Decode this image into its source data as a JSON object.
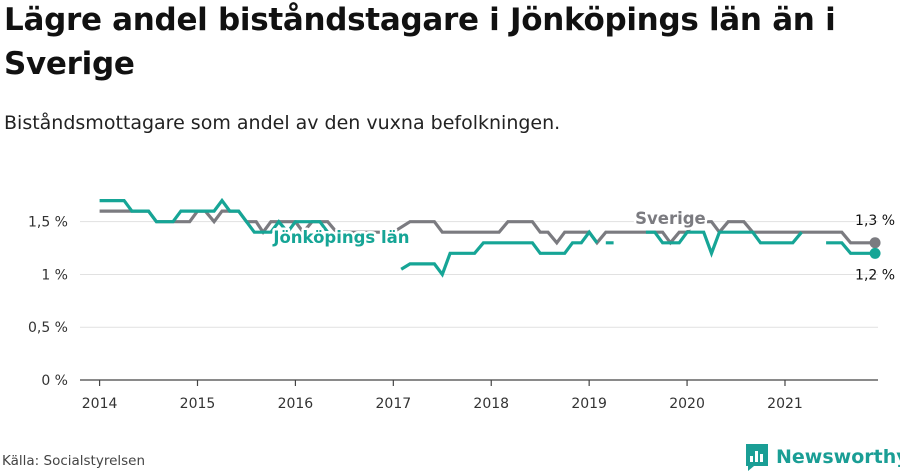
{
  "title": "Lägre andel biståndstagare i Jönköpings län än i Sverige",
  "subtitle": "Biståndsmottagare som andel av den vuxna befolkningen.",
  "source": "Källa: Socialstyrelsen",
  "brand": "Newsworthy",
  "colors": {
    "sverige": "#7b7b80",
    "jonkoping": "#16a596",
    "grid": "#e1e1e1",
    "axis": "#444444",
    "brand": "#1a9e95"
  },
  "chart_data": {
    "type": "line",
    "title": "Lägre andel biståndstagare i Jönköpings län än i Sverige",
    "ylabel": "",
    "xlabel": "",
    "ylim": [
      0,
      1.8
    ],
    "xlim": [
      2013.8,
      2021.95
    ],
    "grid": true,
    "y_ticks": [
      {
        "value": 0,
        "label": "0 %"
      },
      {
        "value": 0.5,
        "label": "0,5 %"
      },
      {
        "value": 1.0,
        "label": "1 %"
      },
      {
        "value": 1.5,
        "label": "1,5 %"
      }
    ],
    "x_ticks": [
      {
        "value": 2014,
        "label": "2014"
      },
      {
        "value": 2015,
        "label": "2015"
      },
      {
        "value": 2016,
        "label": "2016"
      },
      {
        "value": 2017,
        "label": "2017"
      },
      {
        "value": 2018,
        "label": "2018"
      },
      {
        "value": 2019,
        "label": "2019"
      },
      {
        "value": 2020,
        "label": "2020"
      },
      {
        "value": 2021,
        "label": "2021"
      }
    ],
    "series": [
      {
        "name": "Sverige",
        "end_label": "1,3 %",
        "points": [
          [
            2014.0,
            1.6
          ],
          [
            2014.25,
            1.6
          ],
          [
            2014.33,
            1.6
          ],
          [
            2014.5,
            1.6
          ],
          [
            2014.58,
            1.5
          ],
          [
            2014.92,
            1.5
          ],
          [
            2015.0,
            1.6
          ],
          [
            2015.08,
            1.6
          ],
          [
            2015.17,
            1.5
          ],
          [
            2015.25,
            1.6
          ],
          [
            2015.42,
            1.6
          ],
          [
            2015.5,
            1.5
          ],
          [
            2015.6,
            1.5
          ],
          [
            2015.67,
            1.4
          ],
          [
            2015.75,
            1.5
          ],
          [
            2016.0,
            1.5
          ],
          [
            2016.08,
            1.4
          ],
          [
            2016.17,
            1.5
          ],
          [
            2016.33,
            1.5
          ],
          [
            2016.42,
            1.4
          ],
          [
            2017.0,
            1.4
          ],
          [
            2017.17,
            1.5
          ],
          [
            2017.42,
            1.5
          ],
          [
            2017.5,
            1.4
          ],
          [
            2018.08,
            1.4
          ],
          [
            2018.17,
            1.5
          ],
          [
            2018.42,
            1.5
          ],
          [
            2018.5,
            1.4
          ],
          [
            2018.58,
            1.4
          ],
          [
            2018.67,
            1.3
          ],
          [
            2018.75,
            1.4
          ],
          [
            2019.0,
            1.4
          ],
          [
            2019.08,
            1.3
          ],
          [
            2019.17,
            1.4
          ],
          [
            2019.75,
            1.4
          ],
          [
            2019.83,
            1.3
          ],
          [
            2019.92,
            1.4
          ],
          [
            2020.0,
            1.4
          ],
          [
            2020.08,
            1.5
          ],
          [
            2020.25,
            1.5
          ],
          [
            2020.33,
            1.4
          ],
          [
            2020.42,
            1.5
          ],
          [
            2020.58,
            1.5
          ],
          [
            2020.67,
            1.4
          ],
          [
            2021.58,
            1.4
          ],
          [
            2021.67,
            1.3
          ],
          [
            2021.83,
            1.3
          ],
          [
            2021.92,
            1.3
          ]
        ],
        "labels": [
          {
            "value": 2019.83,
            "y": 1.48,
            "text": "Sverige"
          }
        ]
      },
      {
        "name": "Jönköpings län",
        "end_label": "1,2 %",
        "points": [
          [
            2014.0,
            1.7
          ],
          [
            2014.25,
            1.7
          ],
          [
            2014.33,
            1.6
          ],
          [
            2014.5,
            1.6
          ],
          [
            2014.58,
            1.5
          ],
          [
            2014.75,
            1.5
          ],
          [
            2014.83,
            1.6
          ],
          [
            2015.0,
            1.6
          ],
          [
            2015.17,
            1.6
          ],
          [
            2015.25,
            1.7
          ],
          [
            2015.33,
            1.6
          ],
          [
            2015.42,
            1.6
          ],
          [
            2015.5,
            1.5
          ],
          [
            2015.58,
            1.4
          ],
          [
            2015.75,
            1.4
          ],
          [
            2015.83,
            1.5
          ],
          [
            2015.92,
            1.4
          ],
          [
            2016.0,
            1.5
          ],
          [
            2016.17,
            1.5
          ],
          [
            2016.25,
            1.5
          ],
          [
            2016.33,
            1.4
          ],
          [
            2016.35,
            null
          ],
          [
            2017.08,
            1.05
          ],
          [
            2017.17,
            1.1
          ],
          [
            2017.42,
            1.1
          ],
          [
            2017.5,
            1.0
          ],
          [
            2017.58,
            1.2
          ],
          [
            2017.83,
            1.2
          ],
          [
            2017.92,
            1.3
          ],
          [
            2018.42,
            1.3
          ],
          [
            2018.5,
            1.2
          ],
          [
            2018.75,
            1.2
          ],
          [
            2018.83,
            1.3
          ],
          [
            2018.92,
            1.3
          ],
          [
            2019.0,
            1.4
          ],
          [
            2019.08,
            1.3
          ],
          [
            2019.1,
            null
          ],
          [
            2019.17,
            1.3
          ],
          [
            2019.25,
            1.3
          ],
          [
            2019.27,
            null
          ],
          [
            2019.58,
            1.4
          ],
          [
            2019.67,
            1.4
          ],
          [
            2019.75,
            1.3
          ],
          [
            2019.92,
            1.3
          ],
          [
            2020.0,
            1.4
          ],
          [
            2020.17,
            1.4
          ],
          [
            2020.25,
            1.2
          ],
          [
            2020.33,
            1.4
          ],
          [
            2020.67,
            1.4
          ],
          [
            2020.75,
            1.3
          ],
          [
            2021.0,
            1.3
          ],
          [
            2021.08,
            1.3
          ],
          [
            2021.17,
            1.4
          ],
          [
            2021.19,
            null
          ],
          [
            2021.42,
            1.3
          ],
          [
            2021.58,
            1.3
          ],
          [
            2021.67,
            1.2
          ],
          [
            2021.83,
            1.2
          ],
          [
            2021.92,
            1.2
          ]
        ],
        "labels": [
          {
            "value": 2016.47,
            "y": 1.3,
            "text": "Jönköpings län"
          }
        ]
      }
    ]
  }
}
